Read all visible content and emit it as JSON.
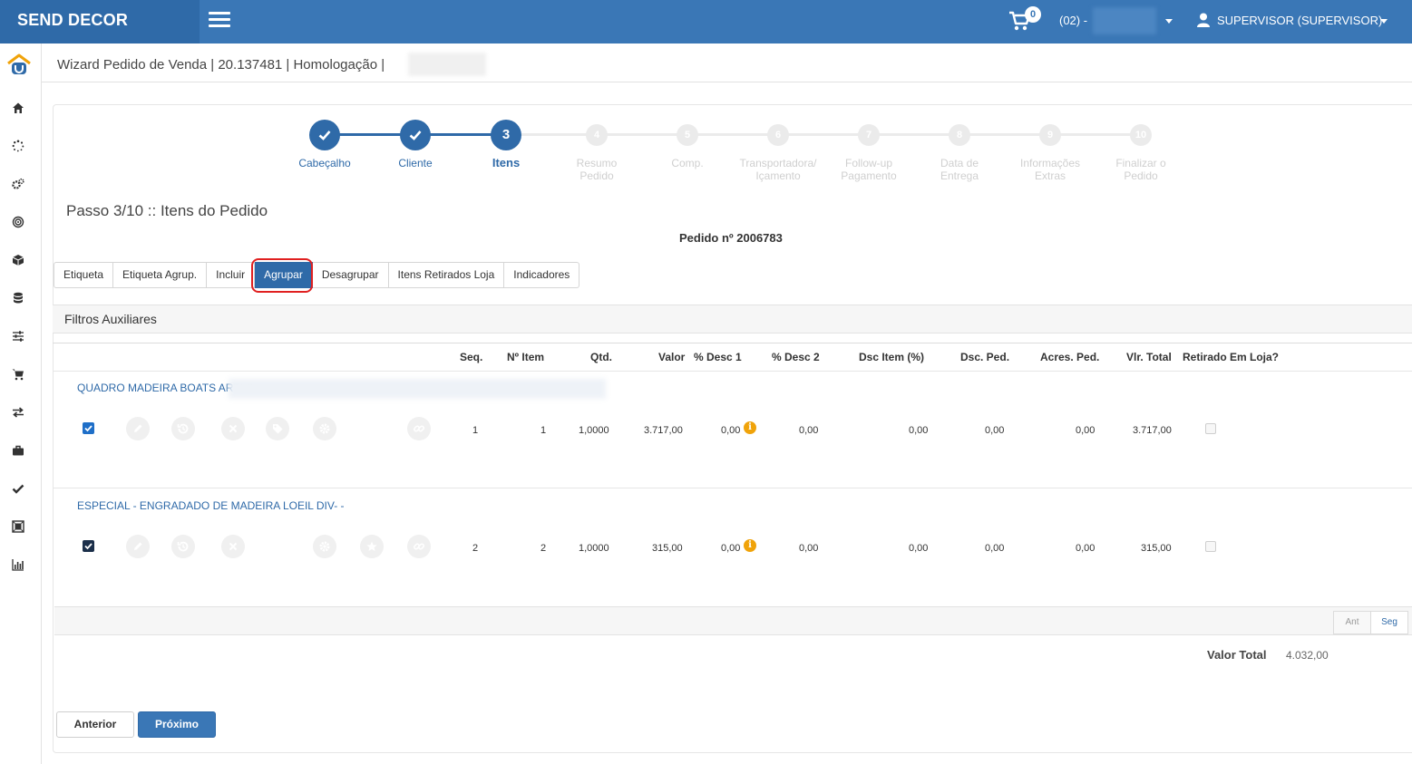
{
  "header": {
    "brand": "SEND DECOR",
    "cart_count": "0",
    "store": "(02) -",
    "user": "SUPERVISOR (SUPERVISOR)"
  },
  "page": {
    "title": "Wizard Pedido de Venda | 20.137481 | Homologação |",
    "step_heading": "Passo 3/10 :: Itens do Pedido",
    "order_number": "Pedido nº 2006783"
  },
  "wizard": {
    "steps": [
      {
        "number": "1",
        "label_1": "Cabeçalho",
        "label_2": ""
      },
      {
        "number": "2",
        "label_1": "Cliente",
        "label_2": ""
      },
      {
        "number": "3",
        "label_1": "Itens",
        "label_2": ""
      },
      {
        "number": "4",
        "label_1": "Resumo",
        "label_2": "Pedido"
      },
      {
        "number": "5",
        "label_1": "Comp.",
        "label_2": ""
      },
      {
        "number": "6",
        "label_1": "Transportadora/",
        "label_2": "Içamento"
      },
      {
        "number": "7",
        "label_1": "Follow-up",
        "label_2": "Pagamento"
      },
      {
        "number": "8",
        "label_1": "Data de",
        "label_2": "Entrega"
      },
      {
        "number": "9",
        "label_1": "Informações",
        "label_2": "Extras"
      },
      {
        "number": "10",
        "label_1": "Finalizar o",
        "label_2": "Pedido"
      }
    ]
  },
  "tabs": [
    "Etiqueta",
    "Etiqueta Agrup.",
    "Incluir",
    "Agrupar",
    "Desagrupar",
    "Itens Retirados Loja",
    "Indicadores"
  ],
  "filters": {
    "label": "Filtros Auxiliares"
  },
  "table": {
    "headers": {
      "seq": "Seq.",
      "item": "Nº Item",
      "qtd": "Qtd.",
      "valor": "Valor",
      "desc1": "% Desc 1",
      "desc2": "% Desc 2",
      "dsc_item": "Dsc Item (%)",
      "dsc_ped": "Dsc. Ped.",
      "acres_ped": "Acres. Ped.",
      "vlr_total": "Vlr. Total",
      "retirado": "Retirado Em Loja?"
    },
    "rows": [
      {
        "name": "QUADRO MADEIRA BOATS ARTI-S",
        "seq": "1",
        "item": "1",
        "qtd": "1,0000",
        "valor": "3.717,00",
        "desc1": "0,00",
        "desc2": "0,00",
        "dsc_item": "0,00",
        "dsc_ped": "0,00",
        "acres_ped": "0,00",
        "vlr_total": "3.717,00"
      },
      {
        "name": "ESPECIAL - ENGRADADO DE MADEIRA LOEIL DIV- -",
        "seq": "2",
        "item": "2",
        "qtd": "1,0000",
        "valor": "315,00",
        "desc1": "0,00",
        "desc2": "0,00",
        "dsc_item": "0,00",
        "dsc_ped": "0,00",
        "acres_ped": "0,00",
        "vlr_total": "315,00"
      }
    ],
    "info_glyph": "i"
  },
  "pager": {
    "prev": "Ant",
    "next": "Seg"
  },
  "totals": {
    "label": "Valor Total",
    "value": "4.032,00"
  },
  "buttons": {
    "prev": "Anterior",
    "next": "Próximo"
  },
  "colors": {
    "primary": "#3a77b6",
    "header_dark": "#2f6aa8",
    "highlight": "#e02020",
    "info": "#f0a30a"
  }
}
